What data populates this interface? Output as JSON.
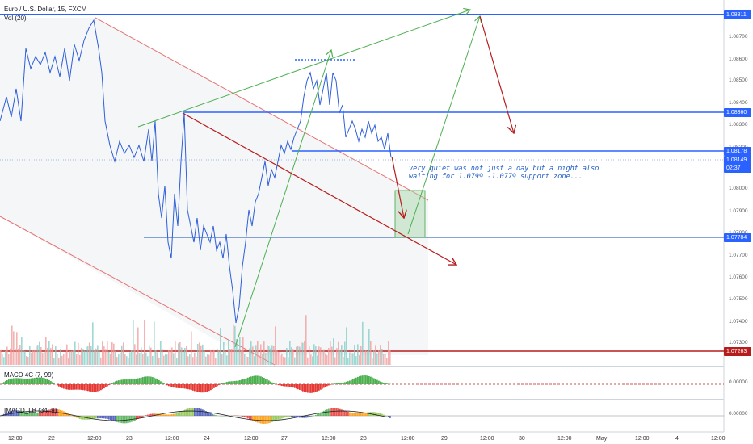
{
  "header": {
    "title": "Euro / U.S. Dollar, 15, FXCM",
    "volume_label": "Vol (20)"
  },
  "indicators": {
    "macd_label": "MACD 4C (7, 99)",
    "imacd_label": "IMACD_LB (34, 9)"
  },
  "annotation": {
    "line1": "very quiet was not just a day but a night also",
    "line2": "waiting for 1.0799 -1.0779 support zone..."
  },
  "price_axis": {
    "ticks": [
      "1.08700",
      "1.08600",
      "1.08500",
      "1.08400",
      "1.08300",
      "1.08200",
      "1.08100",
      "1.08000",
      "1.07900",
      "1.07800",
      "1.07700",
      "1.07600",
      "1.07500",
      "1.07400",
      "1.07300"
    ],
    "badges": [
      {
        "text": "1.08811",
        "color": "#2962ff"
      },
      {
        "text": "1.08360",
        "color": "#2962ff"
      },
      {
        "text": "1.08178",
        "color": "#2962ff"
      },
      {
        "text": "1.08149",
        "color": "#2962ff"
      },
      {
        "text": "02:37",
        "color": "#2962ff"
      },
      {
        "text": "1.07784",
        "color": "#2962ff"
      },
      {
        "text": "1.07263",
        "color": "#b71c1c"
      }
    ],
    "macd_zero": "0.00000",
    "imacd_zero": "0.00000"
  },
  "time_axis": {
    "ticks": [
      "12:00",
      "22",
      "12:00",
      "23",
      "12:00",
      "24",
      "12:00",
      "27",
      "12:00",
      "28",
      "12:00",
      "29",
      "12:00",
      "30",
      "12:00",
      "May",
      "12:00",
      "4",
      "12:00"
    ]
  },
  "colors": {
    "blue_line": "#2962ff",
    "red_line": "#b71c1c",
    "green_arrow": "#4caf50",
    "price_line": "#2d5fd8",
    "vol_up": "#80cbc4",
    "vol_down": "#ef9a9a"
  }
}
